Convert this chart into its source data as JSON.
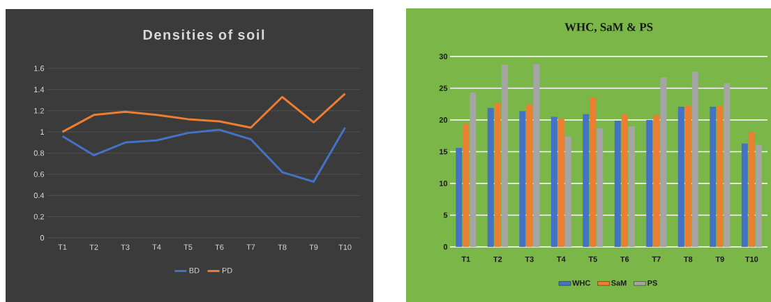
{
  "chart_data": [
    {
      "type": "line",
      "title": "Densities of soil",
      "categories": [
        "T1",
        "T2",
        "T3",
        "T4",
        "T5",
        "T6",
        "T7",
        "T8",
        "T9",
        "T10"
      ],
      "series": [
        {
          "name": "BD",
          "color": "#4472c4",
          "values": [
            0.96,
            0.78,
            0.9,
            0.92,
            0.99,
            1.02,
            0.93,
            0.62,
            0.53,
            1.04
          ]
        },
        {
          "name": "PD",
          "color": "#ed7d31",
          "values": [
            1.0,
            1.16,
            1.19,
            1.16,
            1.12,
            1.1,
            1.04,
            1.33,
            1.09,
            1.36
          ]
        }
      ],
      "ylim": [
        0,
        1.6
      ],
      "yticks": [
        0,
        0.2,
        0.4,
        0.6,
        0.8,
        1,
        1.2,
        1.4,
        1.6
      ],
      "grid": "y",
      "legend": "bottom",
      "marker": "none",
      "line_style": "solid"
    },
    {
      "type": "bar",
      "title": "WHC, SaM & PS",
      "categories": [
        "T1",
        "T2",
        "T3",
        "T4",
        "T5",
        "T6",
        "T7",
        "T8",
        "T9",
        "T10"
      ],
      "series": [
        {
          "name": "WHC",
          "color": "#4472c4",
          "values": [
            15.6,
            21.9,
            21.4,
            20.5,
            20.9,
            19.9,
            20.0,
            22.1,
            22.1,
            16.3
          ]
        },
        {
          "name": "SaM",
          "color": "#ed7d31",
          "values": [
            19.4,
            22.6,
            22.4,
            20.2,
            23.6,
            20.9,
            20.8,
            22.3,
            22.3,
            18.1
          ]
        },
        {
          "name": "PS",
          "color": "#a5a5a5",
          "values": [
            24.3,
            28.7,
            28.8,
            17.4,
            18.7,
            19.0,
            26.7,
            27.6,
            25.8,
            16.1
          ]
        }
      ],
      "ylim": [
        0,
        30
      ],
      "yticks": [
        0,
        5,
        10,
        15,
        20,
        25,
        30
      ],
      "grid": "y",
      "legend": "bottom"
    }
  ]
}
